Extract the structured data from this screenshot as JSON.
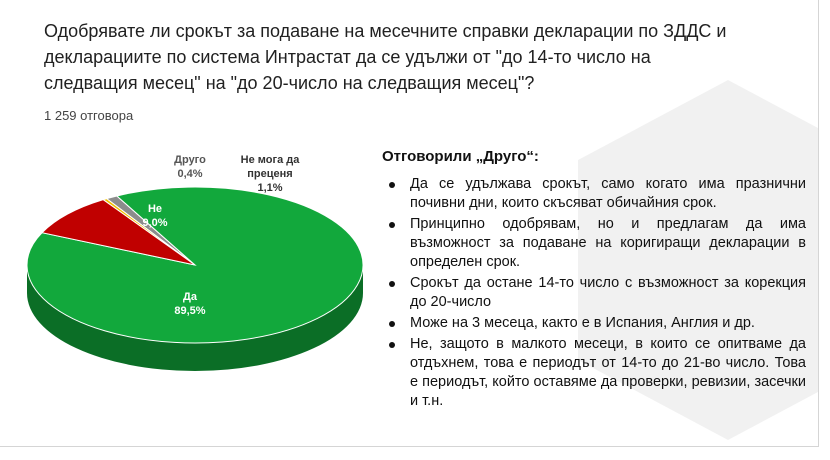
{
  "question": "Одобрявате ли срокът за подаване на месечните справки декларации по ЗДДС и декларациите по система Интрастат да се удължи от \"до 14-то число на следващия месец\" на \"до 20-число на следващия месец\"?",
  "responses_count": "1 259 отговора",
  "chart_data": {
    "type": "pie",
    "series": [
      {
        "name": "Да",
        "label": "Да",
        "value": 89.5,
        "value_label": "89,5%",
        "color": "#12a83c",
        "side_color": "#0b6e26"
      },
      {
        "name": "Не",
        "label": "Не",
        "value": 9.0,
        "value_label": "9,0%",
        "color": "#c00000",
        "side_color": "#7a0000"
      },
      {
        "name": "Друго",
        "label": "Друго",
        "value": 0.4,
        "value_label": "0,4%",
        "color": "#f2c000",
        "side_color": "#a88400"
      },
      {
        "name": "Не мога да преценя",
        "label_lines": [
          "Не мога да",
          "преценя"
        ],
        "value": 1.1,
        "value_label": "1,1%",
        "color": "#8c8c8c",
        "side_color": "#595959"
      }
    ],
    "legend": "none",
    "style": "3d-pie"
  },
  "other": {
    "title": "Отговорили „Друго“:",
    "items": [
      "Да се удължава срокът, само когато има празнични почивни дни, които скъсяват обичайния срок.",
      "Принципно одобрявам, но и предлагам да има възможност за подаване на коригиращи декларации в определен срок.",
      "Срокът да остане 14-то число с възможност за корекция до 20-число",
      "Може на 3 месеца, както е в Испания, Англия и др.",
      "Не, защото в малкото месеци, в които се опитваме да отдъхнем, това е периодът от 14-то до 21-во число. Това е периодът, който оставяме да проверки, ревизии, засечки и т.н."
    ]
  }
}
